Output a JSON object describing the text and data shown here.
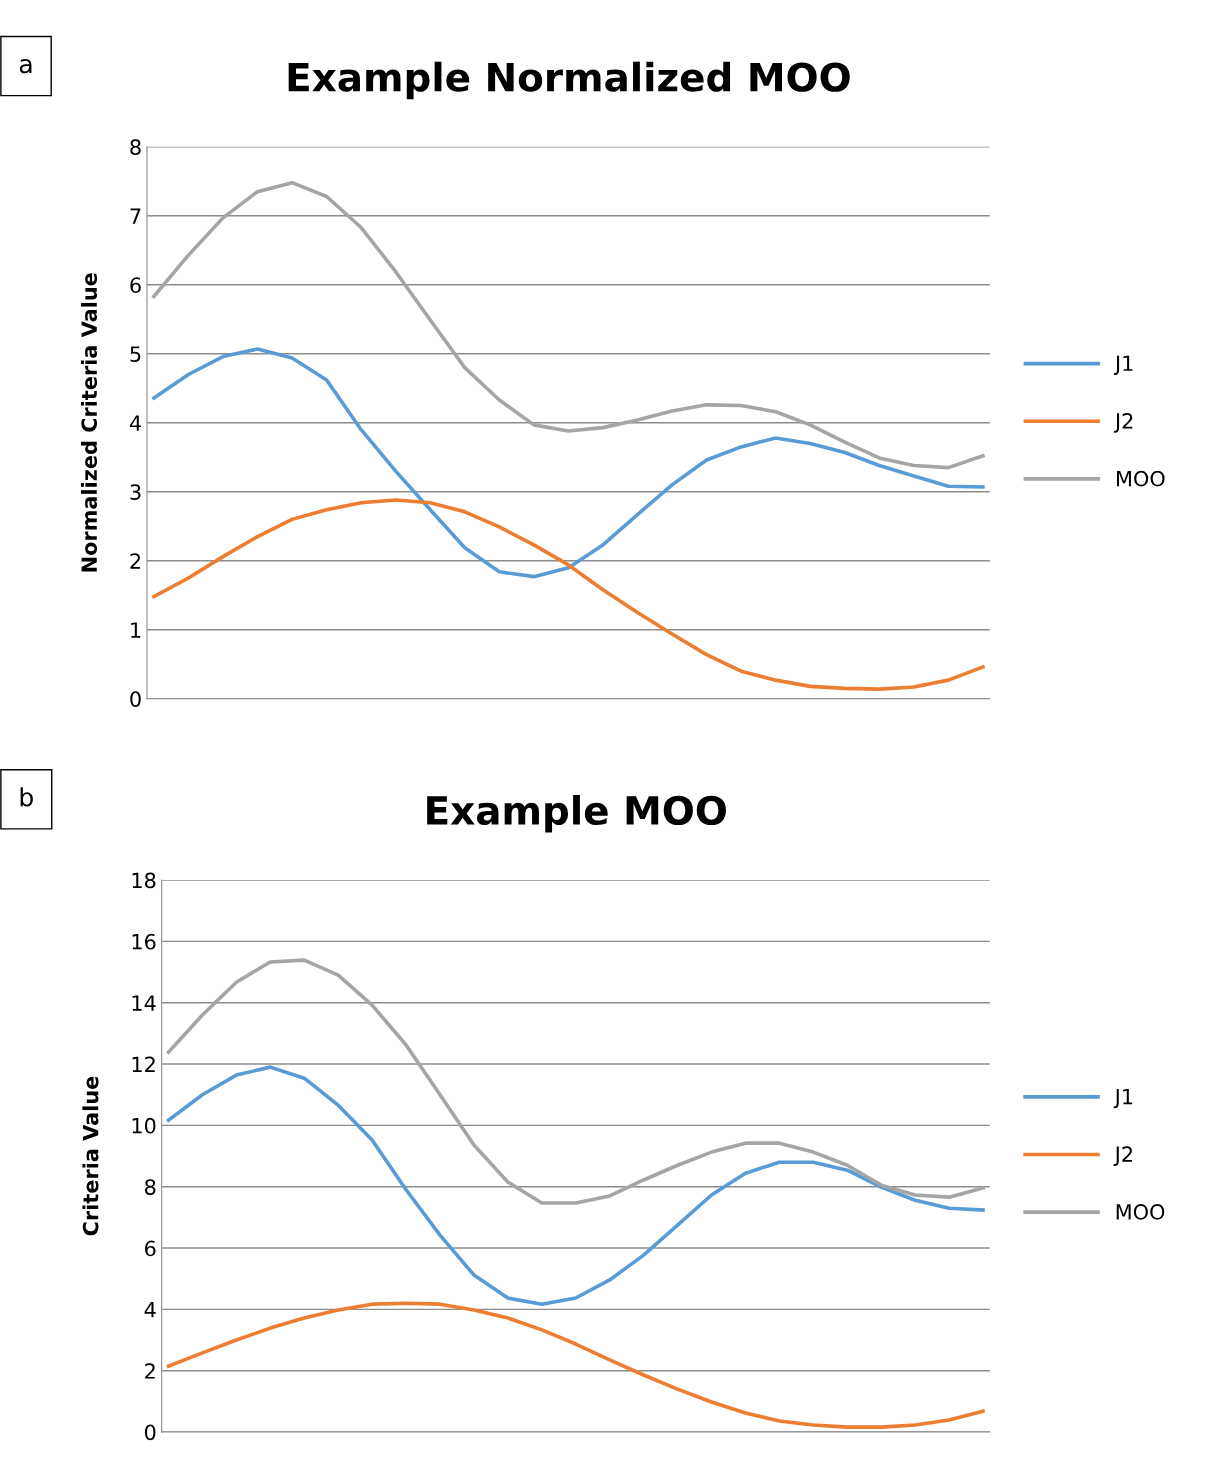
{
  "chart_data": [
    {
      "type": "line",
      "title": "Example Normalized MOO",
      "ylabel": "Normalized Criteria Value",
      "annotations": [
        "a"
      ],
      "categories": [
        null,
        null,
        null,
        null,
        null,
        null,
        null,
        null,
        null,
        null,
        null,
        null,
        null,
        null,
        null,
        null,
        null,
        null,
        null,
        null,
        null,
        null,
        null,
        null,
        null
      ],
      "series": [
        {
          "name": "J1",
          "color": "#5b9bd5",
          "values": [
            4.36,
            4.7,
            4.96,
            5.07,
            4.94,
            4.62,
            3.9,
            3.3,
            2.74,
            2.19,
            1.84,
            1.77,
            1.9,
            2.23,
            2.67,
            3.1,
            3.46,
            3.65,
            3.78,
            3.7,
            3.57,
            3.38,
            3.23,
            3.08,
            3.07
          ]
        },
        {
          "name": "J2",
          "color": "#ed7d31",
          "values": [
            1.48,
            1.75,
            2.06,
            2.35,
            2.6,
            2.74,
            2.84,
            2.88,
            2.84,
            2.71,
            2.49,
            2.23,
            1.94,
            1.58,
            1.25,
            0.94,
            0.64,
            0.4,
            0.27,
            0.18,
            0.15,
            0.14,
            0.17,
            0.27,
            0.46
          ]
        },
        {
          "name": "MOO",
          "color": "#a5a5a5",
          "values": [
            5.83,
            6.43,
            6.97,
            7.35,
            7.48,
            7.28,
            6.83,
            6.19,
            5.49,
            4.8,
            4.33,
            3.97,
            3.88,
            3.93,
            4.04,
            4.17,
            4.26,
            4.25,
            4.16,
            3.97,
            3.72,
            3.49,
            3.38,
            3.35,
            3.52
          ]
        }
      ],
      "ylim": [
        0,
        8
      ],
      "yticks": [
        0,
        1,
        2,
        3,
        4,
        5,
        6,
        7,
        8
      ],
      "grid": "y",
      "legend": "right",
      "tick_labels": "y",
      "marker": "none",
      "line_style": "solid"
    },
    {
      "type": "line",
      "title": "Example MOO",
      "ylabel": "Criteria Value",
      "annotations": [
        "b"
      ],
      "categories": [
        null,
        null,
        null,
        null,
        null,
        null,
        null,
        null,
        null,
        null,
        null,
        null,
        null,
        null,
        null,
        null,
        null,
        null,
        null,
        null,
        null,
        null,
        null,
        null,
        null
      ],
      "series": [
        {
          "name": "J1",
          "color": "#5b9bd5",
          "values": [
            10.17,
            11.0,
            11.64,
            11.9,
            11.54,
            10.66,
            9.52,
            7.9,
            6.42,
            5.12,
            4.37,
            4.17,
            4.37,
            4.96,
            5.77,
            6.75,
            7.73,
            8.44,
            8.8,
            8.8,
            8.54,
            7.99,
            7.56,
            7.3,
            7.24
          ]
        },
        {
          "name": "J2",
          "color": "#ed7d31",
          "values": [
            2.15,
            2.58,
            3.0,
            3.39,
            3.72,
            3.98,
            4.17,
            4.2,
            4.17,
            3.98,
            3.72,
            3.33,
            2.87,
            2.35,
            1.86,
            1.4,
            0.98,
            0.62,
            0.36,
            0.23,
            0.16,
            0.16,
            0.23,
            0.39,
            0.68
          ]
        },
        {
          "name": "MOO",
          "color": "#a5a5a5",
          "values": [
            12.39,
            13.6,
            14.67,
            15.33,
            15.39,
            14.9,
            13.92,
            12.62,
            11.0,
            9.36,
            8.15,
            7.47,
            7.47,
            7.7,
            8.22,
            8.7,
            9.13,
            9.42,
            9.42,
            9.13,
            8.7,
            8.05,
            7.73,
            7.66,
            7.96
          ]
        }
      ],
      "ylim": [
        0,
        18
      ],
      "yticks": [
        0,
        2,
        4,
        6,
        8,
        10,
        12,
        14,
        16,
        18
      ],
      "grid": "y",
      "legend": "right",
      "tick_labels": "y",
      "marker": "none",
      "line_style": "solid"
    }
  ]
}
